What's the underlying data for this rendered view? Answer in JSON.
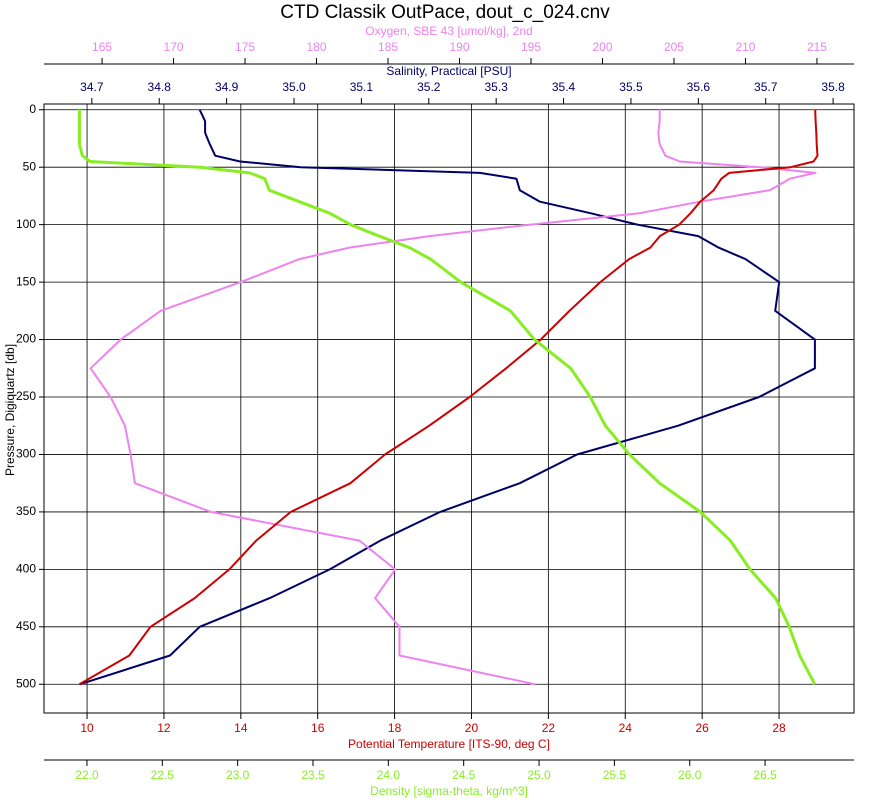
{
  "chart_data": {
    "type": "line",
    "title": "CTD Classik OutPace, dout_c_024.cnv",
    "y_label": "Pressure, Digiquartz [db]",
    "ylim": [
      -5,
      525
    ],
    "y_inverted": true,
    "yticks": [
      0,
      50,
      100,
      150,
      200,
      250,
      300,
      350,
      400,
      450,
      500
    ],
    "grid": true,
    "y": [
      0,
      10,
      20,
      30,
      40,
      45,
      50,
      55,
      60,
      70,
      80,
      90,
      100,
      110,
      120,
      130,
      150,
      175,
      200,
      225,
      250,
      275,
      300,
      325,
      350,
      375,
      400,
      425,
      450,
      475,
      500
    ],
    "series": [
      {
        "name": "Salinity, Practical [PSU]",
        "color": "#000066",
        "xlim": [
          34.629,
          35.831
        ],
        "xticks": [
          {
            "value": 34.7,
            "label": "34.7"
          },
          {
            "value": 34.8,
            "label": "34.8"
          },
          {
            "value": 34.9,
            "label": "34.9"
          },
          {
            "value": 35.0,
            "label": "35.0"
          },
          {
            "value": 35.1,
            "label": "35.1"
          },
          {
            "value": 35.2,
            "label": "35.2"
          },
          {
            "value": 35.3,
            "label": "35.3"
          },
          {
            "value": 35.4,
            "label": "35.4"
          },
          {
            "value": 35.5,
            "label": "35.5"
          },
          {
            "value": 35.6,
            "label": "35.6"
          },
          {
            "value": 35.7,
            "label": "35.7"
          },
          {
            "value": 35.8,
            "label": "35.8"
          }
        ],
        "values": [
          34.86,
          34.868,
          34.868,
          34.875,
          34.883,
          34.92,
          35.01,
          35.276,
          35.33,
          35.335,
          35.365,
          35.44,
          35.51,
          35.6,
          35.63,
          35.67,
          35.72,
          35.714,
          35.773,
          35.773,
          35.69,
          35.57,
          35.42,
          35.335,
          35.217,
          35.128,
          35.053,
          34.964,
          34.86,
          34.816,
          34.682
        ]
      },
      {
        "name": "Oxygen, SBE 43 [umol/kg], 2nd",
        "color": "#ee82ee",
        "xlim": [
          160.94,
          217.59
        ],
        "xticks": [
          165,
          170,
          175,
          180,
          185,
          190,
          195,
          200,
          205,
          210,
          215
        ],
        "values": [
          204.0,
          204.0,
          203.9,
          204.0,
          204.4,
          205.4,
          211.0,
          214.9,
          213.1,
          211.7,
          206.8,
          202.6,
          194.9,
          187.9,
          182.3,
          178.8,
          174.7,
          169.1,
          166.3,
          164.2,
          165.6,
          166.6,
          167.0,
          167.3,
          172.6,
          183.0,
          185.5,
          184.1,
          185.8,
          185.8,
          195.3
        ]
      },
      {
        "name": "Potential Temperature [ITS-90, deg C]",
        "color": "#cc0000",
        "xlim": [
          8.88,
          29.95
        ],
        "xticks": [
          10,
          12,
          14,
          16,
          18,
          20,
          22,
          24,
          26,
          28
        ],
        "values": [
          28.94,
          28.95,
          28.97,
          28.98,
          29.0,
          28.9,
          28.3,
          26.7,
          26.5,
          26.3,
          25.95,
          25.7,
          25.4,
          24.9,
          24.65,
          24.1,
          23.35,
          22.55,
          21.8,
          20.9,
          19.95,
          18.9,
          17.75,
          16.85,
          15.3,
          14.4,
          13.7,
          12.8,
          11.65,
          11.1,
          9.8
        ]
      },
      {
        "name": "Density [sigma-theta, kg/m^3]",
        "color": "#88ee22",
        "xlim": [
          21.715,
          27.09
        ],
        "xticks": [
          {
            "value": 22.0,
            "label": "22.0"
          },
          {
            "value": 22.5,
            "label": "22.5"
          },
          {
            "value": 23.0,
            "label": "23.0"
          },
          {
            "value": 23.5,
            "label": "23.5"
          },
          {
            "value": 24.0,
            "label": "24.0"
          },
          {
            "value": 24.5,
            "label": "24.5"
          },
          {
            "value": 25.0,
            "label": "25.0"
          },
          {
            "value": 25.5,
            "label": "25.5"
          },
          {
            "value": 26.0,
            "label": "26.0"
          },
          {
            "value": 26.5,
            "label": "26.5"
          }
        ],
        "values": [
          21.95,
          21.95,
          21.95,
          21.95,
          21.97,
          22.02,
          22.75,
          23.08,
          23.18,
          23.21,
          23.41,
          23.61,
          23.75,
          23.94,
          24.14,
          24.28,
          24.48,
          24.81,
          24.97,
          25.21,
          25.34,
          25.44,
          25.6,
          25.8,
          26.07,
          26.27,
          26.4,
          26.57,
          26.66,
          26.73,
          26.83
        ]
      }
    ]
  }
}
